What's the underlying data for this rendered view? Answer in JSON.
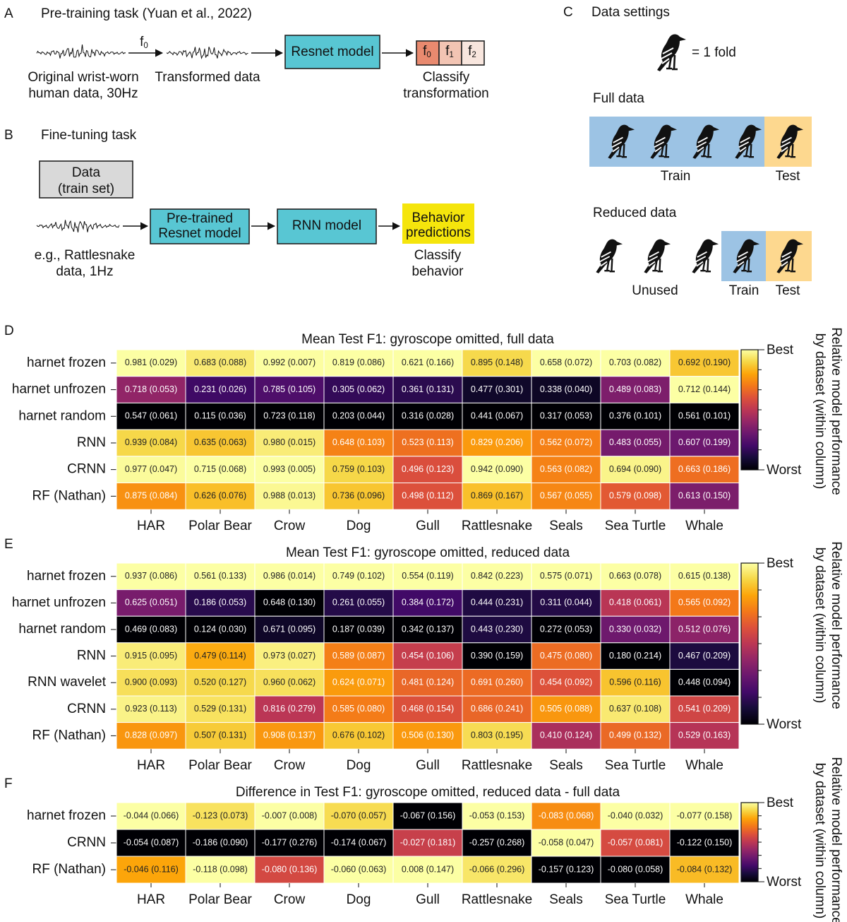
{
  "panel_a": {
    "label": "A",
    "title": "Pre-training task (Yuan et al., 2022)",
    "source_label": [
      "Original wrist-worn",
      "human data, 30Hz"
    ],
    "transform_label": {
      "base": "f",
      "sub": "0"
    },
    "transformed_label": "Transformed data",
    "model": "Resnet model",
    "classes": [
      {
        "base": "f",
        "sub": "0"
      },
      {
        "base": "f",
        "sub": "1"
      },
      {
        "base": "f",
        "sub": "2"
      }
    ],
    "output_label": [
      "Classify",
      "transformation"
    ]
  },
  "panel_b": {
    "label": "B",
    "title": "Fine-tuning task",
    "data_box": [
      "Data",
      "(train set)"
    ],
    "input_label": [
      "e.g., Rattlesnake",
      "data, 1Hz"
    ],
    "pretrained_box": [
      "Pre-trained",
      "Resnet model"
    ],
    "rnn_box": "RNN model",
    "output_box": [
      "Behavior",
      "predictions"
    ],
    "output_label": [
      "Classify",
      "behavior"
    ]
  },
  "panel_c": {
    "label": "C",
    "title": "Data settings",
    "legend": "= 1 fold",
    "full": {
      "title": "Full data",
      "train": "Train",
      "test": "Test"
    },
    "reduced": {
      "title": "Reduced data",
      "unused": "Unused",
      "train": "Train",
      "test": "Test"
    }
  },
  "chart_data": [
    {
      "type": "heatmap",
      "label": "D",
      "title": "Mean Test F1: gyroscope omitted, full data",
      "colormap": "inferno",
      "categories": [
        "HAR",
        "Polar Bear",
        "Crow",
        "Dog",
        "Gull",
        "Rattlesnake",
        "Seals",
        "Sea Turtle",
        "Whale"
      ],
      "rows": [
        "harnet frozen",
        "harnet unfrozen",
        "harnet random",
        "RNN",
        "CRNN",
        "RF (Nathan)"
      ],
      "values": [
        [
          0.981,
          0.683,
          0.992,
          0.819,
          0.621,
          0.895,
          0.658,
          0.703,
          0.692
        ],
        [
          0.718,
          0.231,
          0.785,
          0.305,
          0.361,
          0.477,
          0.338,
          0.489,
          0.712
        ],
        [
          0.547,
          0.115,
          0.723,
          0.203,
          0.316,
          0.441,
          0.317,
          0.376,
          0.561
        ],
        [
          0.939,
          0.635,
          0.98,
          0.648,
          0.523,
          0.829,
          0.562,
          0.483,
          0.607
        ],
        [
          0.977,
          0.715,
          0.993,
          0.759,
          0.496,
          0.942,
          0.563,
          0.694,
          0.663
        ],
        [
          0.875,
          0.626,
          0.988,
          0.736,
          0.498,
          0.869,
          0.567,
          0.579,
          0.613
        ]
      ],
      "errors": [
        [
          0.029,
          0.088,
          0.007,
          0.086,
          0.166,
          0.148,
          0.072,
          0.082,
          0.19
        ],
        [
          0.053,
          0.026,
          0.105,
          0.062,
          0.131,
          0.301,
          0.04,
          0.083,
          0.144
        ],
        [
          0.061,
          0.036,
          0.118,
          0.044,
          0.028,
          0.067,
          0.053,
          0.101,
          0.101
        ],
        [
          0.084,
          0.063,
          0.015,
          0.103,
          0.113,
          0.206,
          0.072,
          0.055,
          0.199
        ],
        [
          0.047,
          0.068,
          0.005,
          0.103,
          0.123,
          0.09,
          0.082,
          0.09,
          0.186
        ],
        [
          0.084,
          0.076,
          0.013,
          0.096,
          0.112,
          0.167,
          0.055,
          0.098,
          0.15
        ]
      ],
      "value_labels": [
        [
          "0.981 (0.029)",
          "0.683 (0.088)",
          "0.992 (0.007)",
          "0.819 (0.086)",
          "0.621 (0.166)",
          "0.895 (0.148)",
          "0.658 (0.072)",
          "0.703 (0.082)",
          "0.692 (0.190)"
        ],
        [
          "0.718 (0.053)",
          "0.231 (0.026)",
          "0.785 (0.105)",
          "0.305 (0.062)",
          "0.361 (0.131)",
          "0.477 (0.301)",
          "0.338 (0.040)",
          "0.489 (0.083)",
          "0.712 (0.144)"
        ],
        [
          "0.547 (0.061)",
          "0.115 (0.036)",
          "0.723 (0.118)",
          "0.203 (0.044)",
          "0.316 (0.028)",
          "0.441 (0.067)",
          "0.317 (0.053)",
          "0.376 (0.101)",
          "0.561 (0.101)"
        ],
        [
          "0.939 (0.084)",
          "0.635 (0.063)",
          "0.980 (0.015)",
          "0.648 (0.103)",
          "0.523 (0.113)",
          "0.829 (0.206)",
          "0.562 (0.072)",
          "0.483 (0.055)",
          "0.607 (0.199)"
        ],
        [
          "0.977 (0.047)",
          "0.715 (0.068)",
          "0.993 (0.005)",
          "0.759 (0.103)",
          "0.496 (0.123)",
          "0.942 (0.090)",
          "0.563 (0.082)",
          "0.694 (0.090)",
          "0.663 (0.186)"
        ],
        [
          "0.875 (0.084)",
          "0.626 (0.076)",
          "0.988 (0.013)",
          "0.736 (0.096)",
          "0.498 (0.112)",
          "0.869 (0.167)",
          "0.567 (0.055)",
          "0.579 (0.098)",
          "0.613 (0.150)"
        ]
      ],
      "colorbar": {
        "max_label": "Best",
        "min_label": "Worst",
        "label": [
          "Relative model performance",
          "by dataset (within column)"
        ]
      }
    },
    {
      "type": "heatmap",
      "label": "E",
      "title": "Mean Test F1: gyroscope omitted, reduced data",
      "colormap": "inferno",
      "categories": [
        "HAR",
        "Polar Bear",
        "Crow",
        "Dog",
        "Gull",
        "Rattlesnake",
        "Seals",
        "Sea Turtle",
        "Whale"
      ],
      "rows": [
        "harnet frozen",
        "harnet unfrozen",
        "harnet random",
        "RNN",
        "RNN wavelet",
        "CRNN",
        "RF (Nathan)"
      ],
      "values": [
        [
          0.937,
          0.561,
          0.986,
          0.749,
          0.554,
          0.842,
          0.575,
          0.663,
          0.615
        ],
        [
          0.625,
          0.186,
          0.648,
          0.261,
          0.384,
          0.444,
          0.311,
          0.418,
          0.565
        ],
        [
          0.469,
          0.124,
          0.671,
          0.187,
          0.342,
          0.443,
          0.272,
          0.33,
          0.512
        ],
        [
          0.915,
          0.479,
          0.973,
          0.589,
          0.454,
          0.39,
          0.475,
          0.18,
          0.467
        ],
        [
          0.9,
          0.52,
          0.96,
          0.624,
          0.481,
          0.691,
          0.454,
          0.596,
          0.448
        ],
        [
          0.923,
          0.529,
          0.816,
          0.585,
          0.468,
          0.686,
          0.505,
          0.637,
          0.541
        ],
        [
          0.828,
          0.507,
          0.908,
          0.676,
          0.506,
          0.803,
          0.41,
          0.499,
          0.529
        ]
      ],
      "errors": [
        [
          0.086,
          0.133,
          0.014,
          0.102,
          0.119,
          0.223,
          0.071,
          0.078,
          0.138
        ],
        [
          0.051,
          0.053,
          0.13,
          0.055,
          0.172,
          0.231,
          0.044,
          0.061,
          0.092
        ],
        [
          0.083,
          0.03,
          0.095,
          0.039,
          0.137,
          0.23,
          0.053,
          0.032,
          0.076
        ],
        [
          0.095,
          0.114,
          0.027,
          0.087,
          0.106,
          0.159,
          0.08,
          0.214,
          0.209
        ],
        [
          0.093,
          0.127,
          0.062,
          0.071,
          0.124,
          0.26,
          0.092,
          0.116,
          0.094
        ],
        [
          0.113,
          0.131,
          0.279,
          0.08,
          0.154,
          0.241,
          0.088,
          0.108,
          0.209
        ],
        [
          0.097,
          0.131,
          0.137,
          0.102,
          0.13,
          0.195,
          0.124,
          0.132,
          0.163
        ]
      ],
      "value_labels": [
        [
          "0.937 (0.086)",
          "0.561 (0.133)",
          "0.986 (0.014)",
          "0.749 (0.102)",
          "0.554 (0.119)",
          "0.842 (0.223)",
          "0.575 (0.071)",
          "0.663 (0.078)",
          "0.615 (0.138)"
        ],
        [
          "0.625 (0.051)",
          "0.186 (0.053)",
          "0.648 (0.130)",
          "0.261 (0.055)",
          "0.384 (0.172)",
          "0.444 (0.231)",
          "0.311 (0.044)",
          "0.418 (0.061)",
          "0.565 (0.092)"
        ],
        [
          "0.469 (0.083)",
          "0.124 (0.030)",
          "0.671 (0.095)",
          "0.187 (0.039)",
          "0.342 (0.137)",
          "0.443 (0.230)",
          "0.272 (0.053)",
          "0.330 (0.032)",
          "0.512 (0.076)"
        ],
        [
          "0.915 (0.095)",
          "0.479 (0.114)",
          "0.973 (0.027)",
          "0.589 (0.087)",
          "0.454 (0.106)",
          "0.390 (0.159)",
          "0.475 (0.080)",
          "0.180 (0.214)",
          "0.467 (0.209)"
        ],
        [
          "0.900 (0.093)",
          "0.520 (0.127)",
          "0.960 (0.062)",
          "0.624 (0.071)",
          "0.481 (0.124)",
          "0.691 (0.260)",
          "0.454 (0.092)",
          "0.596 (0.116)",
          "0.448 (0.094)"
        ],
        [
          "0.923 (0.113)",
          "0.529 (0.131)",
          "0.816 (0.279)",
          "0.585 (0.080)",
          "0.468 (0.154)",
          "0.686 (0.241)",
          "0.505 (0.088)",
          "0.637 (0.108)",
          "0.541 (0.209)"
        ],
        [
          "0.828 (0.097)",
          "0.507 (0.131)",
          "0.908 (0.137)",
          "0.676 (0.102)",
          "0.506 (0.130)",
          "0.803 (0.195)",
          "0.410 (0.124)",
          "0.499 (0.132)",
          "0.529 (0.163)"
        ]
      ],
      "colorbar": {
        "max_label": "Best",
        "min_label": "Worst",
        "label": [
          "Relative model performance",
          "by dataset (within column)"
        ]
      }
    },
    {
      "type": "heatmap",
      "label": "F",
      "title": "Difference in Test F1: gyroscope omitted, reduced data - full data",
      "colormap": "inferno",
      "categories": [
        "HAR",
        "Polar Bear",
        "Crow",
        "Dog",
        "Gull",
        "Rattlesnake",
        "Seals",
        "Sea Turtle",
        "Whale"
      ],
      "rows": [
        "harnet frozen",
        "CRNN",
        "RF (Nathan)"
      ],
      "values": [
        [
          -0.044,
          -0.123,
          -0.007,
          -0.07,
          -0.067,
          -0.053,
          -0.083,
          -0.04,
          -0.077
        ],
        [
          -0.054,
          -0.186,
          -0.177,
          -0.174,
          -0.027,
          -0.257,
          -0.058,
          -0.057,
          -0.122
        ],
        [
          -0.046,
          -0.118,
          -0.08,
          -0.06,
          0.008,
          -0.066,
          -0.157,
          -0.08,
          -0.084
        ]
      ],
      "errors": [
        [
          0.066,
          0.073,
          0.008,
          0.057,
          0.156,
          0.153,
          0.068,
          0.032,
          0.158
        ],
        [
          0.087,
          0.09,
          0.276,
          0.067,
          0.181,
          0.268,
          0.047,
          0.081,
          0.15
        ],
        [
          0.116,
          0.098,
          0.136,
          0.063,
          0.147,
          0.296,
          0.123,
          0.058,
          0.132
        ]
      ],
      "value_labels": [
        [
          "-0.044 (0.066)",
          "-0.123 (0.073)",
          "-0.007 (0.008)",
          "-0.070 (0.057)",
          "-0.067 (0.156)",
          "-0.053 (0.153)",
          "-0.083 (0.068)",
          "-0.040 (0.032)",
          "-0.077 (0.158)"
        ],
        [
          "-0.054 (0.087)",
          "-0.186 (0.090)",
          "-0.177 (0.276)",
          "-0.174 (0.067)",
          "-0.027 (0.181)",
          "-0.257 (0.268)",
          "-0.058 (0.047)",
          "-0.057 (0.081)",
          "-0.122 (0.150)"
        ],
        [
          "-0.046 (0.116)",
          "-0.118 (0.098)",
          "-0.080 (0.136)",
          "-0.060 (0.063)",
          "0.008 (0.147)",
          "-0.066 (0.296)",
          "-0.157 (0.123)",
          "-0.080 (0.058)",
          "-0.084 (0.132)"
        ]
      ],
      "colorbar": {
        "max_label": "Best",
        "min_label": "Worst",
        "label": [
          "Relative model performance",
          "by dataset (within column)"
        ]
      }
    }
  ]
}
